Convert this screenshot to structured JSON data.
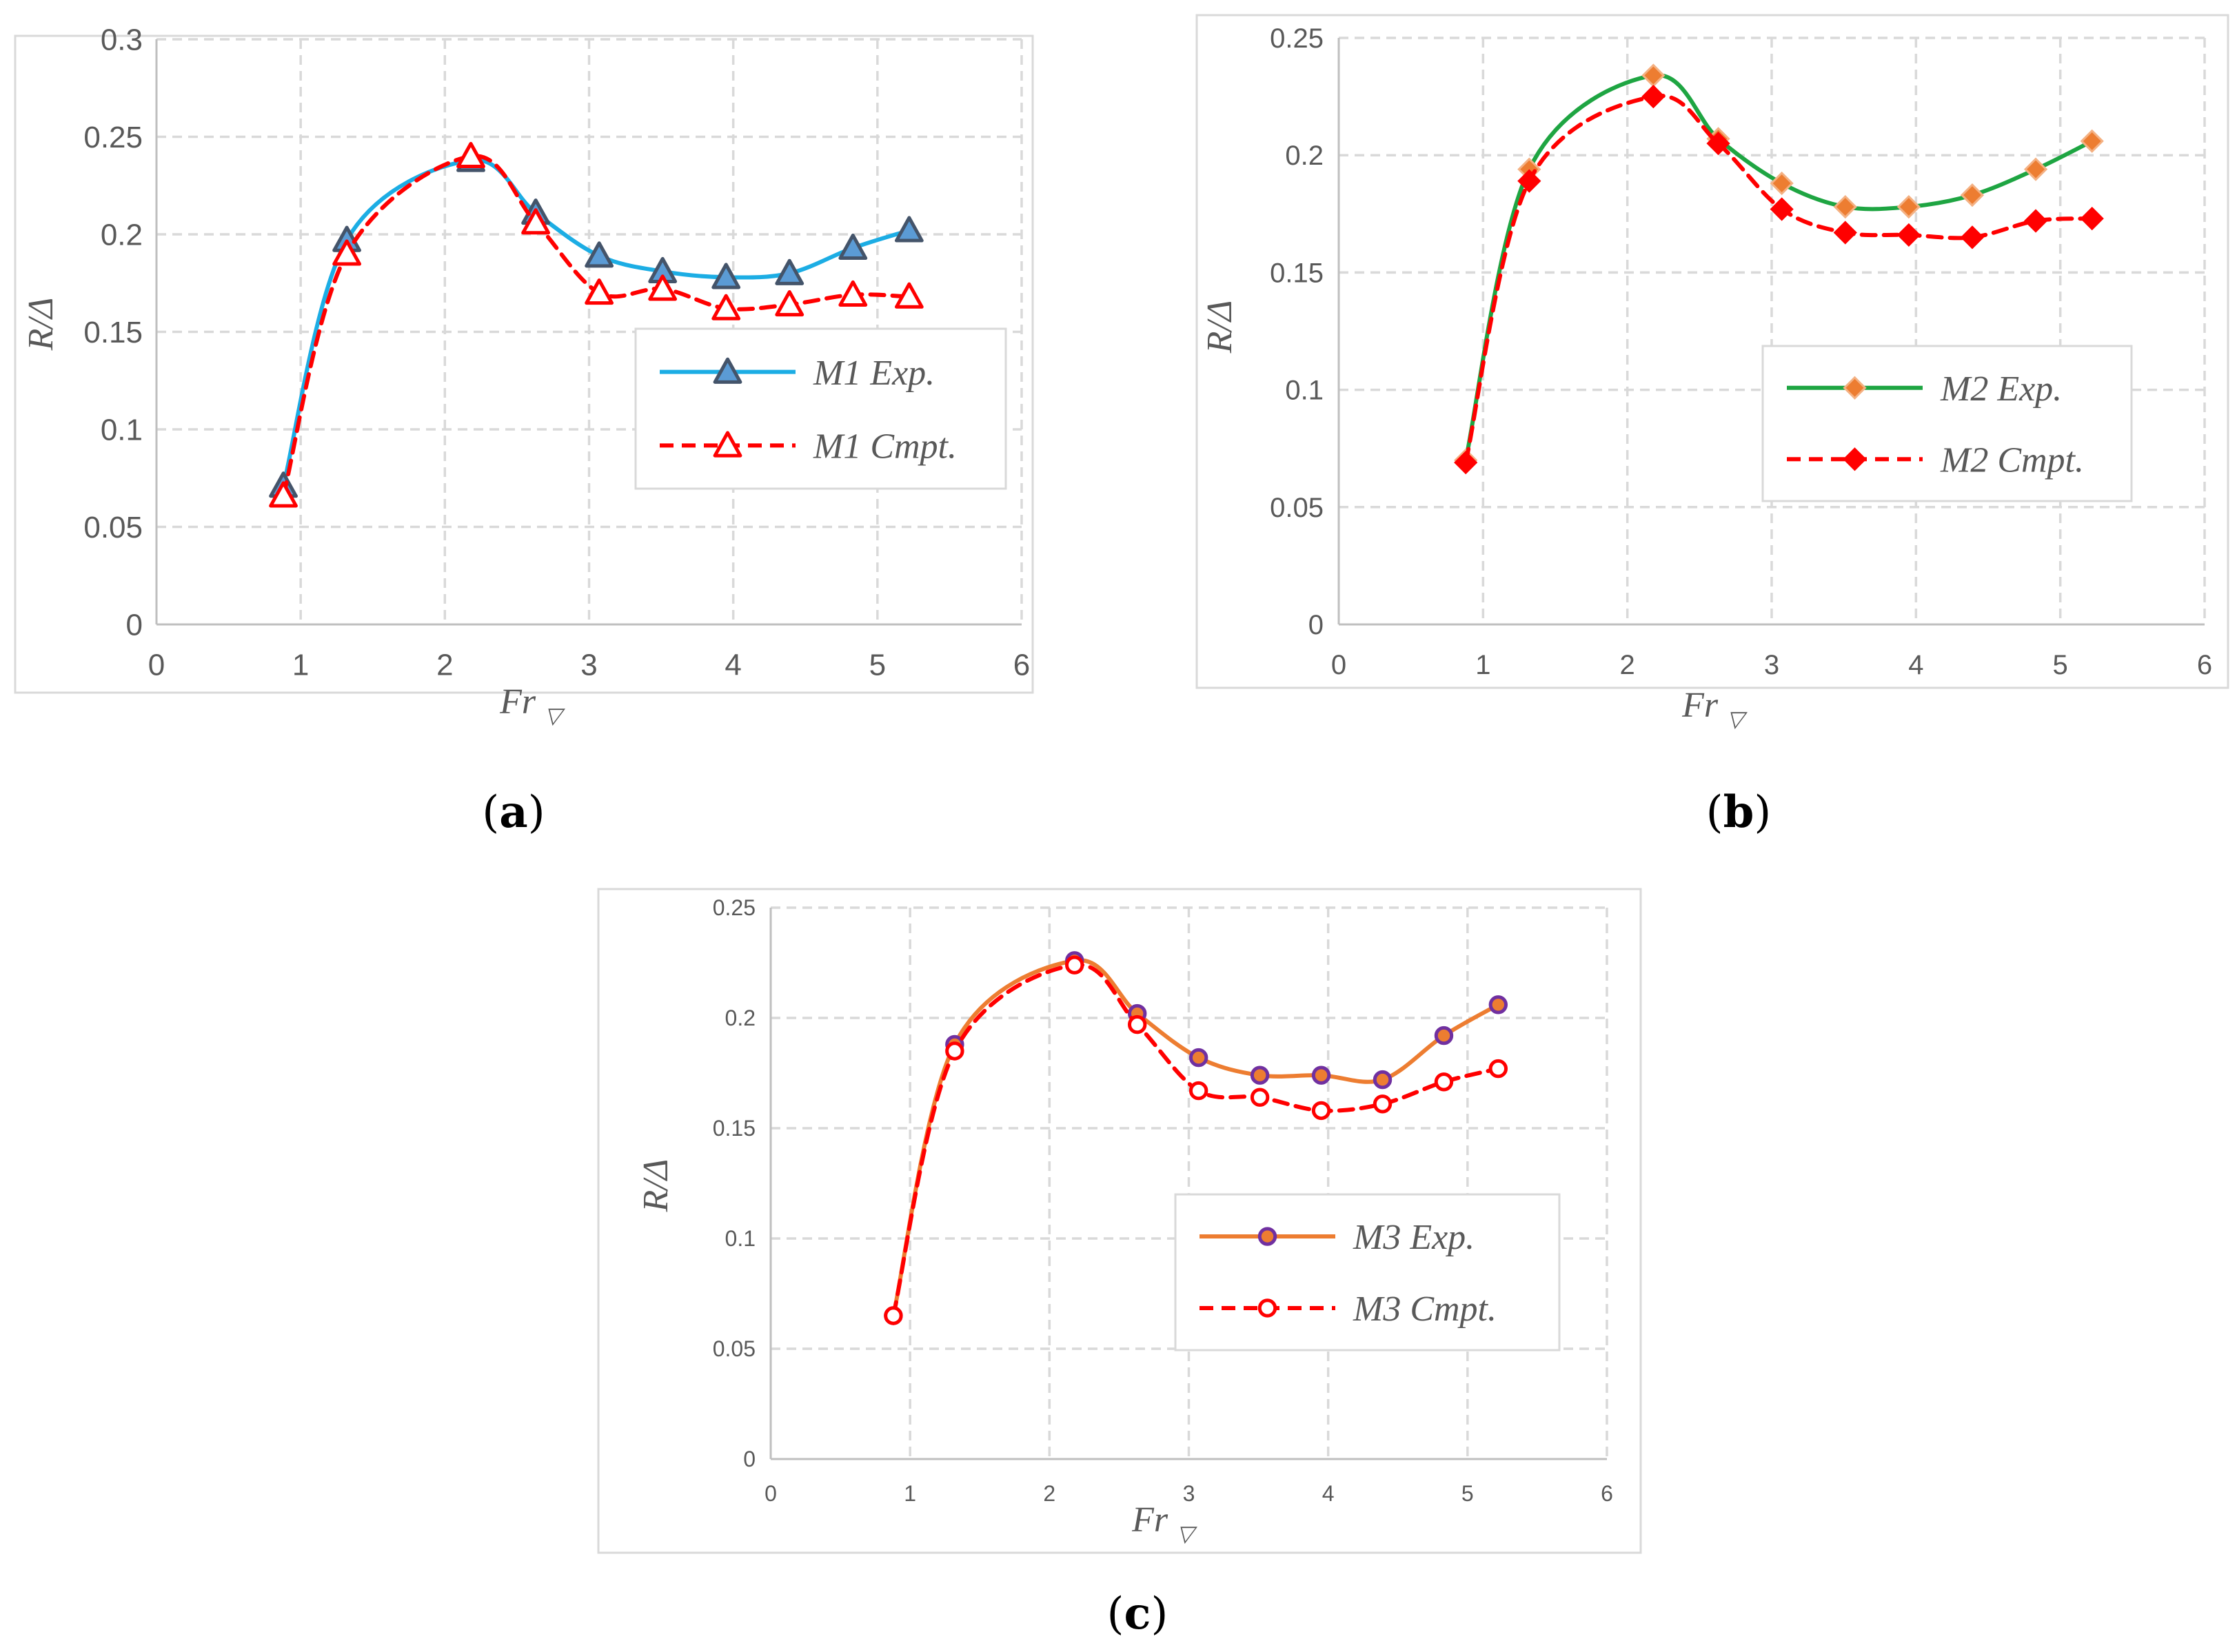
{
  "figure": {
    "panels": [
      {
        "label_open": "(",
        "label_letter": "a",
        "label_close": ")"
      },
      {
        "label_open": "(",
        "label_letter": "b",
        "label_close": ")"
      },
      {
        "label_open": "(",
        "label_letter": "c",
        "label_close": ")"
      }
    ]
  },
  "chart_data": [
    {
      "type": "line",
      "panel": "a",
      "title": "",
      "xlabel": "Fr",
      "xlabel_subscript": "▽",
      "ylabel": "R/Δ",
      "xlim": [
        0,
        6
      ],
      "ylim": [
        0,
        0.3
      ],
      "xticks": [
        0,
        1,
        2,
        3,
        4,
        5,
        6
      ],
      "yticks": [
        0,
        0.05,
        0.1,
        0.15,
        0.2,
        0.25,
        0.3
      ],
      "xtick_labels": [
        "0",
        "1",
        "2",
        "3",
        "4",
        "5",
        "6"
      ],
      "ytick_labels": [
        "0",
        "0.05",
        "0.1",
        "0.15",
        "0.2",
        "0.25",
        "0.3"
      ],
      "grid": true,
      "legend_position": "middle-right",
      "series": [
        {
          "name": "M1 Exp.",
          "line_color": "#1CADE4",
          "marker": "triangle",
          "marker_fill": "#5B9BD5",
          "marker_edge": "#44546A",
          "dashed": false,
          "x": [
            0.88,
            1.32,
            2.18,
            2.63,
            3.07,
            3.51,
            3.95,
            4.39,
            4.83,
            5.22
          ],
          "y": [
            0.071,
            0.197,
            0.238,
            0.211,
            0.189,
            0.181,
            0.178,
            0.18,
            0.193,
            0.202
          ]
        },
        {
          "name": "M1 Cmpt.",
          "line_color": "#FF0000",
          "marker": "triangle",
          "marker_fill": "#FFFFFF",
          "marker_edge": "#FF0000",
          "dashed": true,
          "x": [
            0.88,
            1.32,
            2.18,
            2.63,
            3.07,
            3.51,
            3.95,
            4.39,
            4.83,
            5.22
          ],
          "y": [
            0.066,
            0.19,
            0.24,
            0.206,
            0.17,
            0.172,
            0.162,
            0.164,
            0.169,
            0.168
          ]
        }
      ]
    },
    {
      "type": "line",
      "panel": "b",
      "title": "",
      "xlabel": "Fr",
      "xlabel_subscript": "▽",
      "ylabel": "R/Δ",
      "xlim": [
        0,
        6
      ],
      "ylim": [
        0,
        0.25
      ],
      "xticks": [
        0,
        1,
        2,
        3,
        4,
        5,
        6
      ],
      "yticks": [
        0,
        0.05,
        0.1,
        0.15,
        0.2,
        0.25
      ],
      "xtick_labels": [
        "0",
        "1",
        "2",
        "3",
        "4",
        "5",
        "6"
      ],
      "ytick_labels": [
        "0",
        "0.05",
        "0.1",
        "0.15",
        "0.2",
        "0.25"
      ],
      "grid": true,
      "legend_position": "middle-right",
      "series": [
        {
          "name": "M2 Exp.",
          "line_color": "#1EA542",
          "marker": "diamond",
          "marker_fill": "#ED7D31",
          "marker_edge": "#F4B183",
          "dashed": false,
          "x": [
            0.88,
            1.32,
            2.18,
            2.63,
            3.07,
            3.51,
            3.95,
            4.39,
            4.83,
            5.22
          ],
          "y": [
            0.07,
            0.194,
            0.234,
            0.207,
            0.188,
            0.178,
            0.178,
            0.183,
            0.194,
            0.206
          ]
        },
        {
          "name": "M2 Cmpt.",
          "line_color": "#FF0000",
          "marker": "diamond",
          "marker_fill": "#FF0000",
          "marker_edge": "#FF0000",
          "dashed": true,
          "x": [
            0.88,
            1.32,
            2.18,
            2.63,
            3.07,
            3.51,
            3.95,
            4.39,
            4.83,
            5.22
          ],
          "y": [
            0.069,
            0.189,
            0.225,
            0.205,
            0.177,
            0.167,
            0.166,
            0.165,
            0.172,
            0.173
          ]
        }
      ]
    },
    {
      "type": "line",
      "panel": "c",
      "title": "",
      "xlabel": "Fr",
      "xlabel_subscript": "▽",
      "ylabel": "R/Δ",
      "xlim": [
        0,
        6
      ],
      "ylim": [
        0,
        0.25
      ],
      "xticks": [
        0,
        1,
        2,
        3,
        4,
        5,
        6
      ],
      "yticks": [
        0,
        0.05,
        0.1,
        0.15,
        0.2,
        0.25
      ],
      "xtick_labels": [
        "0",
        "1",
        "2",
        "3",
        "4",
        "5",
        "6"
      ],
      "ytick_labels": [
        "0",
        "0.05",
        "0.1",
        "0.15",
        "0.2",
        "0.25"
      ],
      "grid": true,
      "legend_position": "middle-right",
      "series": [
        {
          "name": "M3 Exp.",
          "line_color": "#ED7D31",
          "marker": "circle",
          "marker_fill": "#ED7D31",
          "marker_edge": "#7030A0",
          "dashed": false,
          "x": [
            0.88,
            1.32,
            2.18,
            2.63,
            3.07,
            3.51,
            3.95,
            4.39,
            4.83,
            5.22
          ],
          "y": [
            0.065,
            0.188,
            0.226,
            0.202,
            0.182,
            0.174,
            0.174,
            0.172,
            0.192,
            0.206
          ]
        },
        {
          "name": "M3 Cmpt.",
          "line_color": "#FF0000",
          "marker": "circle",
          "marker_fill": "#FFFFFF",
          "marker_edge": "#FF0000",
          "dashed": true,
          "x": [
            0.88,
            1.32,
            2.18,
            2.63,
            3.07,
            3.51,
            3.95,
            4.39,
            4.83,
            5.22
          ],
          "y": [
            0.065,
            0.185,
            0.224,
            0.197,
            0.167,
            0.164,
            0.158,
            0.161,
            0.171,
            0.177
          ]
        }
      ]
    }
  ]
}
